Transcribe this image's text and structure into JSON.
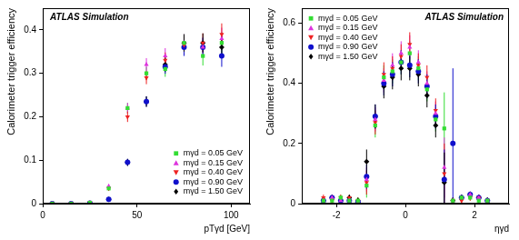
{
  "chart_data": [
    {
      "type": "scatter",
      "annotation": "ATLAS Simulation",
      "x_label": "pTγd [GeV]",
      "y_label": "Calorimeter trigger efficiency",
      "x": [
        5,
        15,
        25,
        35,
        45,
        55,
        65,
        75,
        85,
        95
      ],
      "xlim": [
        0,
        110
      ],
      "xticks": [
        0,
        50,
        100
      ],
      "ylim": [
        0,
        0.45
      ],
      "yticks": [
        0,
        0.1,
        0.2,
        0.3,
        0.4
      ],
      "grid": false,
      "legend": "lower right",
      "series": [
        {
          "name": "mγd = 0.05 GeV",
          "color": "#33dd33",
          "marker": "square",
          "values": [
            0,
            0,
            0.002,
            0.035,
            0.22,
            0.3,
            0.31,
            0.37,
            0.34,
            0.37
          ],
          "errors": [
            0.002,
            0.002,
            0.002,
            0.005,
            0.012,
            0.015,
            0.018,
            0.02,
            0.022,
            0.025
          ]
        },
        {
          "name": "mγd = 0.15 GeV",
          "color": "#dd33dd",
          "marker": "triangle",
          "values": [
            0,
            0,
            0.002,
            0.04,
            0.22,
            0.32,
            0.34,
            0.37,
            0.36,
            0.38
          ],
          "errors": [
            0.002,
            0.002,
            0.002,
            0.005,
            0.012,
            0.015,
            0.018,
            0.02,
            0.022,
            0.025
          ]
        },
        {
          "name": "mγd = 0.40 GeV",
          "color": "#ee2222",
          "marker": "triangle-down",
          "values": [
            0,
            0,
            0.003,
            0.035,
            0.2,
            0.29,
            0.33,
            0.365,
            0.37,
            0.39
          ],
          "errors": [
            0.002,
            0.002,
            0.002,
            0.005,
            0.012,
            0.015,
            0.018,
            0.02,
            0.022,
            0.025
          ]
        },
        {
          "name": "mγd = 0.90 GeV",
          "color": "#1010cc",
          "marker": "circle",
          "values": [
            0,
            0,
            0.001,
            0.01,
            0.095,
            0.235,
            0.315,
            0.36,
            0.36,
            0.34
          ],
          "errors": [
            0.002,
            0.002,
            0.002,
            0.004,
            0.008,
            0.012,
            0.016,
            0.02,
            0.022,
            0.025
          ]
        },
        {
          "name": "mγd = 1.50 GeV",
          "color": "#000000",
          "marker": "diamond",
          "values": [
            0,
            0,
            0.001,
            0.01,
            0.095,
            0.235,
            0.32,
            0.37,
            0.37,
            0.36
          ],
          "errors": [
            0.002,
            0.002,
            0.002,
            0.004,
            0.008,
            0.012,
            0.016,
            0.02,
            0.022,
            0.025
          ]
        }
      ]
    },
    {
      "type": "scatter",
      "annotation": "ATLAS Simulation",
      "x_label": "ηγd",
      "y_label": "Calorimeter trigger efficiency",
      "x": [
        -2.375,
        -2.125,
        -1.875,
        -1.625,
        -1.375,
        -1.125,
        -0.875,
        -0.625,
        -0.375,
        -0.125,
        0.125,
        0.375,
        0.625,
        0.875,
        1.125,
        1.375,
        1.625,
        1.875,
        2.125,
        2.375
      ],
      "xlim": [
        -3,
        3
      ],
      "xticks": [
        -2,
        0,
        2
      ],
      "ylim": [
        0,
        0.65
      ],
      "yticks": [
        0,
        0.2,
        0.4,
        0.6
      ],
      "grid": false,
      "legend": "upper left",
      "series": [
        {
          "name": "mγd = 0.05 GeV",
          "color": "#33dd33",
          "marker": "square",
          "values": [
            0.01,
            0.01,
            0.02,
            0.01,
            0.01,
            0.06,
            0.26,
            0.42,
            0.44,
            0.47,
            0.5,
            0.45,
            0.38,
            0.28,
            0.25,
            0.01,
            0.02,
            0.02,
            0.01,
            0.01
          ],
          "errors": [
            0.01,
            0.01,
            0.01,
            0.01,
            0.01,
            0.04,
            0.04,
            0.04,
            0.04,
            0.04,
            0.04,
            0.04,
            0.04,
            0.04,
            0.12,
            0.01,
            0.01,
            0.01,
            0.01,
            0.01
          ]
        },
        {
          "name": "mγd = 0.15 GeV",
          "color": "#dd33dd",
          "marker": "triangle",
          "values": [
            0.01,
            0.02,
            0.01,
            0.01,
            0.005,
            0.08,
            0.28,
            0.41,
            0.46,
            0.5,
            0.52,
            0.47,
            0.4,
            0.3,
            0.12,
            0.01,
            0.02,
            0.03,
            0.02,
            0.01
          ],
          "errors": [
            0.01,
            0.01,
            0.01,
            0.01,
            0.01,
            0.04,
            0.04,
            0.04,
            0.04,
            0.04,
            0.04,
            0.04,
            0.04,
            0.04,
            0.1,
            0.01,
            0.01,
            0.01,
            0.01,
            0.01
          ]
        },
        {
          "name": "mγd = 0.40 GeV",
          "color": "#ee2222",
          "marker": "triangle-down",
          "values": [
            0.02,
            0.01,
            0.02,
            0.02,
            0.01,
            0.07,
            0.27,
            0.43,
            0.45,
            0.49,
            0.53,
            0.46,
            0.42,
            0.31,
            0.1,
            0.01,
            0.01,
            0.02,
            0.02,
            0.01
          ],
          "errors": [
            0.01,
            0.01,
            0.01,
            0.01,
            0.01,
            0.04,
            0.04,
            0.04,
            0.04,
            0.04,
            0.04,
            0.04,
            0.04,
            0.04,
            0.1,
            0.01,
            0.01,
            0.01,
            0.01,
            0.01
          ]
        },
        {
          "name": "mγd = 0.90 GeV",
          "color": "#1010cc",
          "marker": "circle",
          "values": [
            0.01,
            0.02,
            0.01,
            0.01,
            0.005,
            0.09,
            0.29,
            0.4,
            0.43,
            0.47,
            0.46,
            0.44,
            0.39,
            0.29,
            0.08,
            0.2,
            0.02,
            0.03,
            0.02,
            0.01
          ],
          "errors": [
            0.01,
            0.01,
            0.01,
            0.01,
            0.01,
            0.04,
            0.04,
            0.04,
            0.04,
            0.04,
            0.04,
            0.04,
            0.04,
            0.04,
            0.1,
            0.25,
            0.01,
            0.01,
            0.01,
            0.01
          ]
        },
        {
          "name": "mγd = 1.50 GeV",
          "color": "#000000",
          "marker": "diamond",
          "values": [
            0.01,
            0.02,
            0.01,
            0.02,
            0.01,
            0.14,
            0.29,
            0.39,
            0.42,
            0.45,
            0.45,
            0.43,
            0.36,
            0.26,
            0.07,
            0.01,
            0.02,
            0.03,
            0.02,
            0.01
          ],
          "errors": [
            0.01,
            0.01,
            0.01,
            0.01,
            0.01,
            0.04,
            0.04,
            0.04,
            0.04,
            0.04,
            0.04,
            0.04,
            0.04,
            0.04,
            0.1,
            0.01,
            0.01,
            0.01,
            0.01,
            0.01
          ]
        }
      ]
    }
  ]
}
